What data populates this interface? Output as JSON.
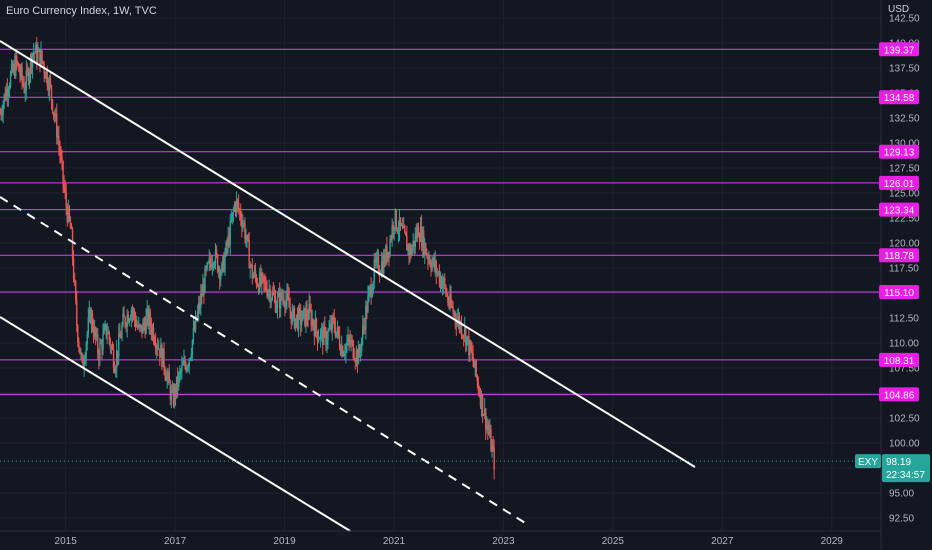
{
  "header": {
    "title": "Euro Currency Index, 1W, TVC",
    "currency": "USD"
  },
  "colors": {
    "background": "#131722",
    "grid": "#1e222d",
    "axis_text": "#b2b5be",
    "level_line": "#e040fb",
    "level_label_bg": "#e91ee6",
    "channel_line": "#ffffff",
    "candle_up": "#26a69a",
    "candle_down": "#ef5350",
    "price_tag_bg": "#26a69a"
  },
  "chart_data": {
    "type": "candlestick",
    "x_axis": {
      "tick_labels": [
        "2015",
        "2017",
        "2019",
        "2021",
        "2023",
        "2025",
        "2027",
        "2029"
      ],
      "tick_values": [
        2015,
        2017,
        2019,
        2021,
        2023,
        2025,
        2027,
        2029
      ],
      "range": [
        2013.8,
        2029.9
      ]
    },
    "y_axis": {
      "tick_labels": [
        "92.50",
        "95.00",
        "97.50",
        "100.00",
        "102.50",
        "105.00",
        "107.50",
        "110.00",
        "112.50",
        "115.00",
        "117.50",
        "120.00",
        "122.50",
        "125.00",
        "127.50",
        "130.00",
        "132.50",
        "135.00",
        "137.50",
        "140.00",
        "142.50"
      ],
      "tick_values": [
        92.5,
        95,
        97.5,
        100,
        102.5,
        105,
        107.5,
        110,
        112.5,
        115,
        117.5,
        120,
        122.5,
        125,
        127.5,
        130,
        132.5,
        135,
        137.5,
        140,
        142.5
      ],
      "range": [
        91.2,
        144.3
      ],
      "unit": "USD"
    },
    "horizontal_levels": [
      {
        "value": 139.37,
        "label": "139.37"
      },
      {
        "value": 134.58,
        "label": "134.58"
      },
      {
        "value": 129.13,
        "label": "129.13"
      },
      {
        "value": 126.01,
        "label": "126.01"
      },
      {
        "value": 123.34,
        "label": "123.34"
      },
      {
        "value": 118.78,
        "label": "118.78"
      },
      {
        "value": 115.1,
        "label": "115.10"
      },
      {
        "value": 108.31,
        "label": "108.31"
      },
      {
        "value": 104.86,
        "label": "104.86"
      }
    ],
    "trend_lines": [
      {
        "style": "solid",
        "from": [
          2013.8,
          140.2
        ],
        "to": [
          2026.5,
          97.6
        ]
      },
      {
        "style": "dashed",
        "from": [
          2013.8,
          124.6
        ],
        "to": [
          2023.4,
          92.0
        ]
      },
      {
        "style": "solid",
        "from": [
          2013.8,
          112.6
        ],
        "to": [
          2020.2,
          91.2
        ]
      }
    ],
    "price_path": [
      [
        2013.8,
        133
      ],
      [
        2013.95,
        136
      ],
      [
        2014.1,
        138
      ],
      [
        2014.25,
        135.5
      ],
      [
        2014.4,
        139.2
      ],
      [
        2014.55,
        138.5
      ],
      [
        2014.7,
        136
      ],
      [
        2014.85,
        131
      ],
      [
        2015.0,
        124
      ],
      [
        2015.1,
        121
      ],
      [
        2015.2,
        112
      ],
      [
        2015.3,
        107.5
      ],
      [
        2015.45,
        113
      ],
      [
        2015.6,
        109
      ],
      [
        2015.75,
        111.5
      ],
      [
        2015.9,
        108
      ],
      [
        2016.05,
        112
      ],
      [
        2016.2,
        113.5
      ],
      [
        2016.35,
        111
      ],
      [
        2016.5,
        112.5
      ],
      [
        2016.65,
        110.5
      ],
      [
        2016.8,
        108
      ],
      [
        2016.95,
        104.2
      ],
      [
        2017.1,
        107
      ],
      [
        2017.25,
        108.5
      ],
      [
        2017.4,
        112.5
      ],
      [
        2017.55,
        116.5
      ],
      [
        2017.7,
        119
      ],
      [
        2017.85,
        117
      ],
      [
        2018.0,
        121
      ],
      [
        2018.1,
        124.2
      ],
      [
        2018.25,
        122
      ],
      [
        2018.4,
        117
      ],
      [
        2018.55,
        116
      ],
      [
        2018.7,
        115.5
      ],
      [
        2018.85,
        114
      ],
      [
        2019.0,
        114.8
      ],
      [
        2019.15,
        112.5
      ],
      [
        2019.3,
        112.3
      ],
      [
        2019.45,
        113
      ],
      [
        2019.6,
        111
      ],
      [
        2019.75,
        110.5
      ],
      [
        2019.9,
        112
      ],
      [
        2020.05,
        109.5
      ],
      [
        2020.2,
        110
      ],
      [
        2020.35,
        108.5
      ],
      [
        2020.5,
        113.5
      ],
      [
        2020.65,
        117.5
      ],
      [
        2020.8,
        118
      ],
      [
        2020.9,
        119.5
      ],
      [
        2021.0,
        122.5
      ],
      [
        2021.15,
        121
      ],
      [
        2021.3,
        119
      ],
      [
        2021.45,
        121.5
      ],
      [
        2021.6,
        119
      ],
      [
        2021.75,
        117.5
      ],
      [
        2021.9,
        116
      ],
      [
        2022.0,
        114
      ],
      [
        2022.15,
        112.5
      ],
      [
        2022.3,
        111
      ],
      [
        2022.45,
        108
      ],
      [
        2022.55,
        105.5
      ],
      [
        2022.65,
        103
      ],
      [
        2022.75,
        100.5
      ],
      [
        2022.83,
        98.19
      ]
    ],
    "last_price": {
      "symbol": "EXY",
      "value": 98.19,
      "value_label": "98.19",
      "countdown": "22:34:57"
    }
  }
}
